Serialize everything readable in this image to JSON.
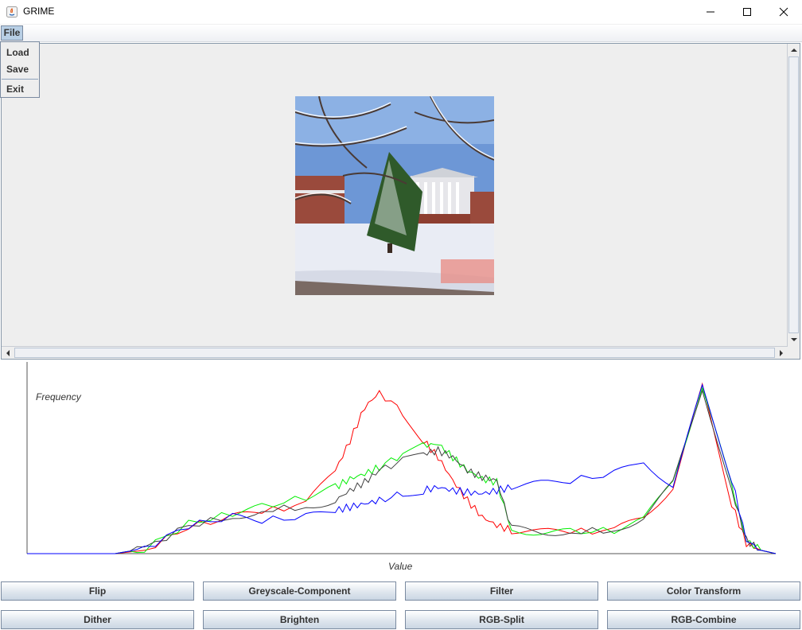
{
  "window": {
    "title": "GRIME"
  },
  "menubar": {
    "file": "File"
  },
  "file_menu": {
    "items": [
      "Load",
      "Save",
      "Exit"
    ]
  },
  "histogram": {
    "ylabel": "Frequency",
    "xlabel": "Value"
  },
  "buttons": {
    "row1": [
      "Flip",
      "Greyscale-Component",
      "Filter",
      "Color Transform"
    ],
    "row2": [
      "Dither",
      "Brighten",
      "RGB-Split",
      "RGB-Combine"
    ]
  },
  "colors": {
    "red": "#ff0000",
    "green": "#00ee00",
    "blue": "#0000ff",
    "grey": "#404040"
  },
  "chart_data": {
    "type": "line",
    "xlabel": "Value",
    "ylabel": "Frequency",
    "xlim": [
      0,
      255
    ],
    "series": [
      {
        "color": "#ff0000",
        "x": [
          0,
          30,
          40,
          55,
          70,
          80,
          95,
          105,
          110,
          115,
          120,
          128,
          135,
          140,
          145,
          150,
          155,
          160,
          165,
          175,
          185,
          200,
          210,
          220,
          230,
          240,
          245,
          250,
          255
        ],
        "y": [
          0,
          0,
          2,
          16,
          22,
          25,
          30,
          50,
          68,
          88,
          97,
          85,
          68,
          58,
          44,
          32,
          22,
          17,
          14,
          13,
          13,
          14,
          22,
          40,
          100,
          30,
          6,
          2,
          0
        ]
      },
      {
        "color": "#00ee00",
        "x": [
          0,
          30,
          40,
          55,
          70,
          80,
          95,
          105,
          110,
          115,
          120,
          128,
          135,
          140,
          145,
          150,
          155,
          160,
          165,
          175,
          185,
          200,
          210,
          220,
          230,
          240,
          245,
          250,
          255
        ],
        "y": [
          0,
          0,
          3,
          18,
          24,
          28,
          34,
          40,
          45,
          48,
          52,
          60,
          65,
          66,
          58,
          50,
          45,
          43,
          14,
          13,
          13,
          14,
          20,
          45,
          100,
          40,
          8,
          2,
          0
        ]
      },
      {
        "color": "#404040",
        "x": [
          0,
          30,
          40,
          55,
          70,
          80,
          95,
          105,
          110,
          115,
          120,
          128,
          135,
          140,
          145,
          150,
          155,
          160,
          165,
          175,
          185,
          200,
          210,
          220,
          230,
          240,
          245,
          250,
          255
        ],
        "y": [
          0,
          0,
          3,
          17,
          22,
          26,
          28,
          32,
          38,
          43,
          50,
          56,
          60,
          62,
          58,
          50,
          46,
          44,
          15,
          13,
          13,
          14,
          22,
          42,
          100,
          38,
          8,
          2,
          0
        ]
      },
      {
        "color": "#0000ff",
        "x": [
          0,
          30,
          40,
          55,
          70,
          80,
          95,
          105,
          110,
          115,
          120,
          128,
          135,
          140,
          145,
          150,
          155,
          160,
          165,
          175,
          185,
          200,
          210,
          220,
          230,
          240,
          245,
          250,
          255
        ],
        "y": [
          0,
          0,
          3,
          17,
          22,
          20,
          22,
          26,
          28,
          30,
          32,
          36,
          38,
          40,
          38,
          37,
          36,
          38,
          40,
          42,
          44,
          48,
          56,
          40,
          100,
          45,
          8,
          2,
          0
        ]
      }
    ]
  }
}
